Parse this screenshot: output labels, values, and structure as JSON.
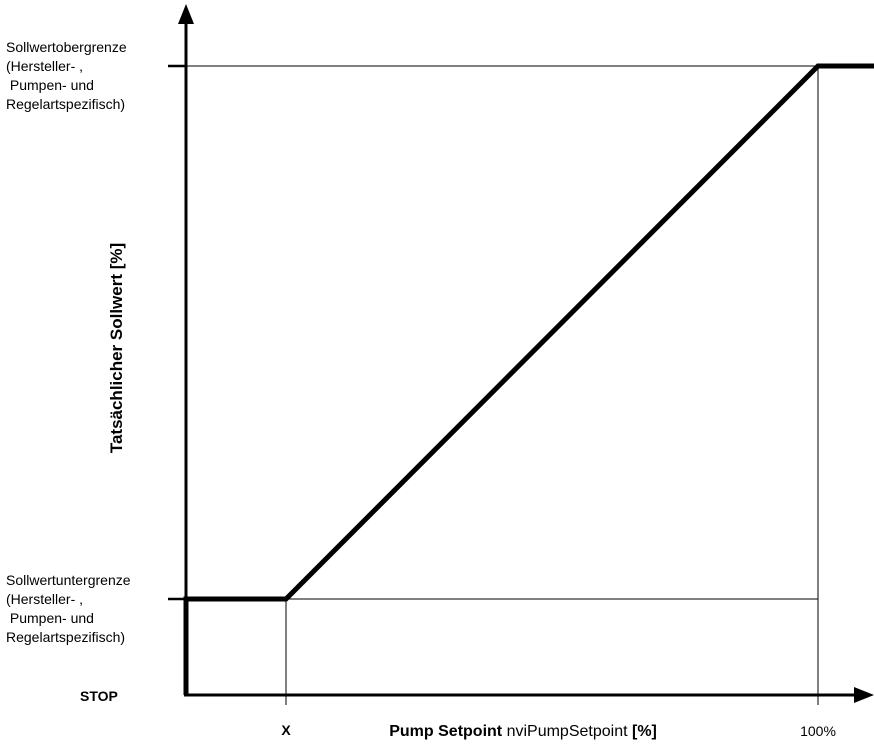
{
  "diagram": {
    "y_axis_title": "Tatsächlicher Sollwert [%]",
    "x_axis_title": {
      "bold_part": "Pump Setpoint",
      "normal_part": " nviPumpSetpoint ",
      "unit_part": "[%]"
    },
    "upper_limit_label": [
      "Sollwertobergrenze",
      "(Hersteller- ,",
      " Pumpen- und",
      "Regelartspezifisch)"
    ],
    "lower_limit_label": [
      "Sollwertuntergrenze",
      "(Hersteller- ,",
      " Pumpen- und",
      "Regelartspezifisch)"
    ],
    "stop_label": "STOP",
    "x_tick_x_label": "X",
    "x_tick_100_label": "100%"
  }
}
